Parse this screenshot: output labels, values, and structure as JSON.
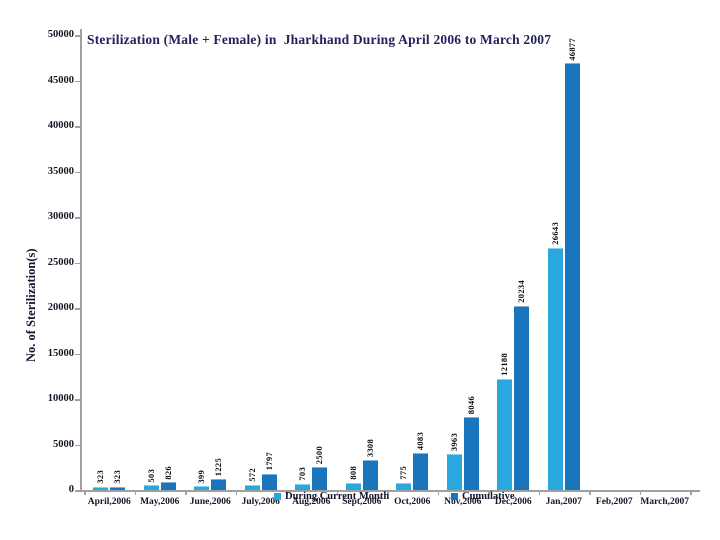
{
  "chart_data": {
    "type": "bar",
    "title": "Sterilization (Male + Female) in  Jharkhand During April 2006 to March 2007",
    "ylabel": "No. of Sterilization(s)",
    "xlabel": "",
    "ylim": [
      0,
      50000
    ],
    "yticks": [
      0,
      5000,
      10000,
      15000,
      20000,
      25000,
      30000,
      35000,
      40000,
      45000,
      50000
    ],
    "grid": false,
    "legend_position": "bottom-overlapping-axis",
    "categories": [
      "April,2006",
      "May,2006",
      "June,2006",
      "July,2006",
      "Aug,2006",
      "Sept,2006",
      "Oct,2006",
      "Nov,2006",
      "Dec,2006",
      "Jan,2007",
      "Feb,2007",
      "March,2007"
    ],
    "series": [
      {
        "name": "During Current Month",
        "color": "#29A8DF",
        "values": [
          323,
          503,
          399,
          572,
          703,
          808,
          775,
          3963,
          12188,
          26643,
          null,
          null
        ]
      },
      {
        "name": "Cumulative",
        "color": "#1B75BC",
        "values": [
          323,
          826,
          1225,
          1797,
          2500,
          3308,
          4083,
          8046,
          20234,
          46877,
          null,
          null
        ]
      }
    ],
    "colors": {
      "axis": "#A0A0A0",
      "title_text": "#23225F",
      "label_text": "#14142C",
      "value_label_text": "#0C0C14"
    }
  }
}
